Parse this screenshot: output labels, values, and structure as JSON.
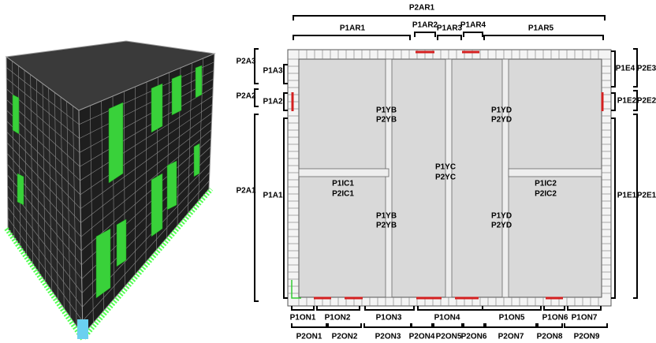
{
  "plan": {
    "top_labels": [
      "P2AR1",
      "P1AR1",
      "P1AR2",
      "P1AR3",
      "P1AR4",
      "P1AR5"
    ],
    "left_labels": [
      "P2A3",
      "P1A3",
      "P2A2",
      "P1A2",
      "P2A1",
      "P1A1"
    ],
    "right_labels": [
      "P1E4",
      "P2E3",
      "P1E2",
      "P2E2",
      "P1E1",
      "P2E1"
    ],
    "interior_labels": [
      "P1YB",
      "P2YB",
      "P1YD",
      "P2YD",
      "P1YC",
      "P2YC",
      "P1IC1",
      "P2IC1",
      "P1IC2",
      "P2IC2",
      "P1YB",
      "P2YB",
      "P1YD",
      "P2YD"
    ],
    "bottom_labels_p1": [
      "P1ON1",
      "P1ON2",
      "P1ON3",
      "P1ON4",
      "P1ON5",
      "P1ON6",
      "P1ON7"
    ],
    "bottom_labels_p2": [
      "P2ON1",
      "P2ON2",
      "P2ON3",
      "P2ON4",
      "P2ON5",
      "P2ON6",
      "P2ON7",
      "P2ON8",
      "P2ON9"
    ]
  }
}
